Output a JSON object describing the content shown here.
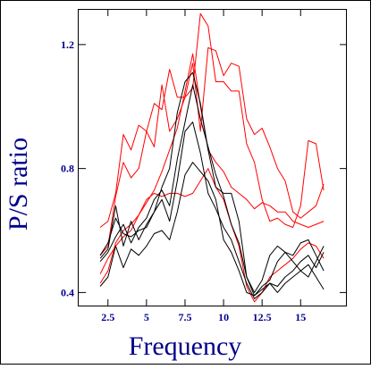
{
  "chart_data": {
    "type": "line",
    "ylabel": "P/S ratio",
    "xlabel": "Frequency",
    "xlim": [
      0.6,
      18.0
    ],
    "ylim": [
      0.355,
      1.315
    ],
    "x_ticks": [
      2.5,
      5,
      7.5,
      10,
      12.5,
      15
    ],
    "x_tick_labels": [
      "2.5",
      "5",
      "7.5",
      "10",
      "12.5",
      "15"
    ],
    "y_ticks": [
      0.4,
      0.8,
      1.2
    ],
    "y_tick_labels": [
      "0.4",
      "0.8",
      "1.2"
    ],
    "grid": false,
    "colors": {
      "axis_text": "#00008b",
      "frame": "#000000",
      "red_series": "#ff0000",
      "black_series": "#000000"
    },
    "series": [
      {
        "color": "#ff0000",
        "x": [
          2.0,
          2.5,
          3.0,
          3.5,
          4.0,
          4.5,
          5.0,
          5.5,
          6.0,
          6.5,
          7.0,
          7.5,
          8.0,
          8.5,
          9.0,
          9.5,
          10.0,
          10.5,
          11.0,
          11.5,
          12.0,
          12.5,
          13.0,
          13.5,
          14.0,
          14.5,
          15.0,
          15.5,
          16.0,
          16.5
        ],
        "y": [
          0.61,
          0.63,
          0.72,
          0.91,
          0.86,
          0.94,
          0.92,
          1.01,
          0.99,
          1.12,
          1.03,
          1.03,
          1.06,
          1.3,
          1.26,
          1.08,
          1.08,
          1.05,
          1.05,
          0.88,
          0.82,
          0.7,
          0.63,
          0.64,
          0.62,
          0.61,
          0.68,
          0.89,
          0.88,
          0.73
        ]
      },
      {
        "color": "#ff0000",
        "x": [
          2.0,
          2.5,
          3.0,
          3.5,
          4.0,
          4.5,
          5.0,
          5.5,
          6.0,
          6.5,
          7.0,
          7.5,
          8.0,
          8.5,
          9.0,
          9.5,
          10.0,
          10.5,
          11.0,
          11.5,
          12.0,
          12.5,
          13.0,
          13.5,
          14.0,
          14.5,
          15.0,
          15.5,
          16.0,
          16.5
        ],
        "y": [
          0.52,
          0.55,
          0.71,
          0.82,
          0.77,
          0.8,
          0.92,
          0.87,
          1.07,
          0.92,
          0.96,
          1.03,
          1.14,
          0.92,
          1.19,
          1.18,
          1.1,
          1.14,
          1.13,
          0.96,
          0.91,
          0.93,
          0.87,
          0.8,
          0.76,
          0.66,
          0.64,
          0.66,
          0.68,
          0.75
        ]
      },
      {
        "color": "#ff0000",
        "x": [
          2.0,
          2.5,
          3.0,
          3.5,
          4.0,
          4.5,
          5.0,
          5.5,
          6.0,
          6.5,
          7.0,
          7.5,
          8.0,
          8.5,
          9.0,
          9.5,
          10.0,
          10.5,
          11.0,
          11.5,
          12.0,
          12.5,
          13.0,
          13.5,
          14.0,
          14.5,
          15.0,
          15.5,
          16.0,
          16.5
        ],
        "y": [
          0.46,
          0.51,
          0.55,
          0.58,
          0.6,
          0.65,
          0.69,
          0.73,
          0.79,
          0.86,
          0.93,
          1.05,
          1.17,
          1.0,
          0.86,
          0.82,
          0.79,
          0.74,
          0.72,
          0.7,
          0.67,
          0.69,
          0.68,
          0.66,
          0.66,
          0.63,
          0.62,
          0.61,
          0.62,
          0.63
        ]
      },
      {
        "color": "#ff0000",
        "x": [
          2.0,
          2.5,
          3.0,
          3.5,
          4.0,
          4.5,
          5.0,
          5.5,
          6.0,
          6.5,
          7.0,
          7.5,
          8.0,
          8.5,
          9.0,
          9.5,
          10.0,
          10.5,
          11.0,
          11.5,
          12.0,
          12.5,
          13.0,
          13.5,
          14.0,
          14.5,
          15.0,
          15.5,
          16.0,
          16.5
        ],
        "y": [
          0.43,
          0.47,
          0.56,
          0.6,
          0.62,
          0.65,
          0.7,
          0.72,
          0.71,
          0.72,
          0.72,
          0.71,
          0.72,
          0.76,
          0.8,
          0.74,
          0.7,
          0.62,
          0.55,
          0.42,
          0.37,
          0.4,
          0.45,
          0.47,
          0.49,
          0.51,
          0.54,
          0.56,
          0.55,
          0.51
        ]
      },
      {
        "color": "#000000",
        "x": [
          2.0,
          2.5,
          3.0,
          3.5,
          4.0,
          4.5,
          5.0,
          5.5,
          6.0,
          6.5,
          7.0,
          7.5,
          8.0,
          8.5,
          9.0,
          9.5,
          10.0,
          10.5,
          11.0,
          11.5,
          12.0,
          12.5,
          13.0,
          13.5,
          14.0,
          14.5,
          15.0,
          15.5,
          16.0,
          16.5
        ],
        "y": [
          0.51,
          0.54,
          0.68,
          0.55,
          0.63,
          0.57,
          0.62,
          0.66,
          0.74,
          0.8,
          0.98,
          1.08,
          1.11,
          1.01,
          0.86,
          0.74,
          0.72,
          0.72,
          0.63,
          0.45,
          0.39,
          0.42,
          0.44,
          0.5,
          0.53,
          0.52,
          0.56,
          0.57,
          0.52,
          0.47
        ]
      },
      {
        "color": "#000000",
        "x": [
          2.0,
          2.5,
          3.0,
          3.5,
          4.0,
          4.5,
          5.0,
          5.5,
          6.0,
          6.5,
          7.0,
          7.5,
          8.0,
          8.5,
          9.0,
          9.5,
          10.0,
          10.5,
          11.0,
          11.5,
          12.0,
          12.5,
          13.0,
          13.5,
          14.0,
          14.5,
          15.0,
          15.5,
          16.0,
          16.5
        ],
        "y": [
          0.5,
          0.53,
          0.58,
          0.62,
          0.56,
          0.61,
          0.64,
          0.7,
          0.73,
          0.68,
          0.83,
          0.95,
          1.07,
          0.96,
          0.87,
          0.78,
          0.71,
          0.62,
          0.56,
          0.45,
          0.4,
          0.44,
          0.52,
          0.55,
          0.53,
          0.5,
          0.47,
          0.45,
          0.5,
          0.55
        ]
      },
      {
        "color": "#000000",
        "x": [
          2.0,
          2.5,
          3.0,
          3.5,
          4.0,
          4.5,
          5.0,
          5.5,
          6.0,
          6.5,
          7.0,
          7.5,
          8.0,
          8.5,
          9.0,
          9.5,
          10.0,
          10.5,
          11.0,
          11.5,
          12.0,
          12.5,
          13.0,
          13.5,
          14.0,
          14.5,
          15.0,
          15.5,
          16.0,
          16.5
        ],
        "y": [
          0.52,
          0.56,
          0.64,
          0.59,
          0.58,
          0.6,
          0.61,
          0.66,
          0.7,
          0.63,
          0.76,
          0.92,
          0.95,
          0.85,
          0.72,
          0.67,
          0.61,
          0.57,
          0.5,
          0.43,
          0.38,
          0.4,
          0.43,
          0.42,
          0.45,
          0.47,
          0.5,
          0.52,
          0.48,
          0.53
        ]
      },
      {
        "color": "#000000",
        "x": [
          2.0,
          2.5,
          3.0,
          3.5,
          4.0,
          4.5,
          5.0,
          5.5,
          6.0,
          6.5,
          7.0,
          7.5,
          8.0,
          8.5,
          9.0,
          9.5,
          10.0,
          10.5,
          11.0,
          11.5,
          12.0,
          12.5,
          13.0,
          13.5,
          14.0,
          14.5,
          15.0,
          15.5,
          16.0,
          16.5
        ],
        "y": [
          0.42,
          0.45,
          0.55,
          0.48,
          0.54,
          0.52,
          0.55,
          0.59,
          0.6,
          0.57,
          0.66,
          0.78,
          0.82,
          0.79,
          0.76,
          0.7,
          0.57,
          0.53,
          0.47,
          0.4,
          0.39,
          0.41,
          0.43,
          0.4,
          0.43,
          0.45,
          0.47,
          0.49,
          0.45,
          0.41
        ]
      }
    ]
  }
}
